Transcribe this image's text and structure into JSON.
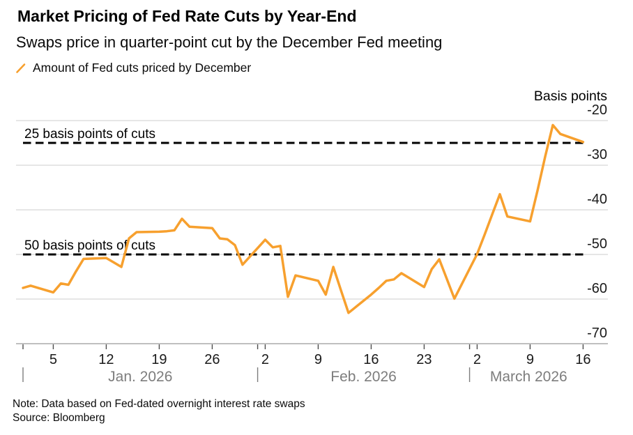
{
  "header": {
    "title": "Market Pricing of Fed Rate Cuts by Year-End",
    "subtitle": "Swaps price in quarter-point cut by the December Fed meeting",
    "legend_label": "Amount of Fed cuts priced by December"
  },
  "colors": {
    "line": "#F7A02E",
    "grid": "#CCCCCC",
    "axis": "#999999",
    "tick_mark": "#4D4D4D",
    "tick_label": "#1A1A1A",
    "month_label": "#7D7D7D",
    "dashed_line": "#000000",
    "annotation_text": "#000000",
    "axis_header": "#000000"
  },
  "chart_data": {
    "type": "line",
    "title": "Market Pricing of Fed Rate Cuts by Year-End",
    "subtitle": "Swaps price in quarter-point cut by the December Fed meeting",
    "legend_position": "top-left",
    "grid": true,
    "y_axis": {
      "label": "Basis points",
      "ticks": [
        -20,
        -30,
        -40,
        -50,
        -60,
        -70
      ],
      "range": [
        -70,
        -20
      ],
      "side": "right"
    },
    "x_axis": {
      "range": [
        "Jan 1",
        "Mar 16"
      ],
      "ticks": [
        {
          "label": "5",
          "date": "Jan 5"
        },
        {
          "label": "12",
          "date": "Jan 12"
        },
        {
          "label": "19",
          "date": "Jan 19"
        },
        {
          "label": "26",
          "date": "Jan 26"
        },
        {
          "label": "2",
          "date": "Feb 2"
        },
        {
          "label": "9",
          "date": "Feb 9"
        },
        {
          "label": "16",
          "date": "Feb 16"
        },
        {
          "label": "23",
          "date": "Feb 23"
        },
        {
          "label": "2",
          "date": "Mar 2"
        },
        {
          "label": "9",
          "date": "Mar 9"
        },
        {
          "label": "16",
          "date": "Mar 16"
        }
      ],
      "months": [
        {
          "label": "Jan. 2026",
          "start": "Jan 1"
        },
        {
          "label": "Feb. 2026",
          "start": "Feb 1"
        },
        {
          "label": "March 2026",
          "start": "Mar 1"
        }
      ]
    },
    "annotations": [
      {
        "label": "25 basis points of cuts",
        "value": -25
      },
      {
        "label": "50 basis points of cuts",
        "value": -50
      }
    ],
    "series": [
      {
        "name": "Amount of Fed cuts priced by December",
        "points": [
          [
            "Jan 1",
            -57.5
          ],
          [
            "Jan 2",
            -57
          ],
          [
            "Jan 5",
            -58.5
          ],
          [
            "Jan 6",
            -56.5
          ],
          [
            "Jan 7",
            -56.8
          ],
          [
            "Jan 8",
            -53.8
          ],
          [
            "Jan 9",
            -51
          ],
          [
            "Jan 12",
            -50.8
          ],
          [
            "Jan 13",
            -51.8
          ],
          [
            "Jan 14",
            -52.8
          ],
          [
            "Jan 15",
            -46.4
          ],
          [
            "Jan 16",
            -45
          ],
          [
            "Jan 19",
            -44.9
          ],
          [
            "Jan 20",
            -44.8
          ],
          [
            "Jan 21",
            -44.6
          ],
          [
            "Jan 22",
            -42
          ],
          [
            "Jan 23",
            -43.8
          ],
          [
            "Jan 26",
            -44.1
          ],
          [
            "Jan 27",
            -46.4
          ],
          [
            "Jan 28",
            -46.6
          ],
          [
            "Jan 29",
            -47.9
          ],
          [
            "Jan 30",
            -52.3
          ],
          [
            "Feb 2",
            -46.7
          ],
          [
            "Feb 3",
            -48.4
          ],
          [
            "Feb 4",
            -48.1
          ],
          [
            "Feb 5",
            -59.5
          ],
          [
            "Feb 6",
            -54.7
          ],
          [
            "Feb 9",
            -55.9
          ],
          [
            "Feb 10",
            -59
          ],
          [
            "Feb 11",
            -52.8
          ],
          [
            "Feb 12",
            -58
          ],
          [
            "Feb 13",
            -63.1
          ],
          [
            "Feb 16",
            -59
          ],
          [
            "Feb 17",
            -57.5
          ],
          [
            "Feb 18",
            -55.9
          ],
          [
            "Feb 19",
            -55.6
          ],
          [
            "Feb 20",
            -54.2
          ],
          [
            "Feb 23",
            -57.3
          ],
          [
            "Feb 24",
            -53.3
          ],
          [
            "Feb 25",
            -51.1
          ],
          [
            "Feb 26",
            -55.5
          ],
          [
            "Feb 27",
            -59.9
          ],
          [
            "Mar 2",
            -49.9
          ],
          [
            "Mar 3",
            -45.5
          ],
          [
            "Mar 4",
            -41
          ],
          [
            "Mar 5",
            -36.5
          ],
          [
            "Mar 6",
            -41.5
          ],
          [
            "Mar 9",
            -42.6
          ],
          [
            "Mar 10",
            -35.5
          ],
          [
            "Mar 11",
            -28
          ],
          [
            "Mar 12",
            -21
          ],
          [
            "Mar 13",
            -23
          ],
          [
            "Mar 16",
            -24.8
          ]
        ]
      }
    ]
  },
  "footer": {
    "note": "Note: Data based on Fed-dated overnight interest rate swaps",
    "source": "Source: Bloomberg"
  }
}
